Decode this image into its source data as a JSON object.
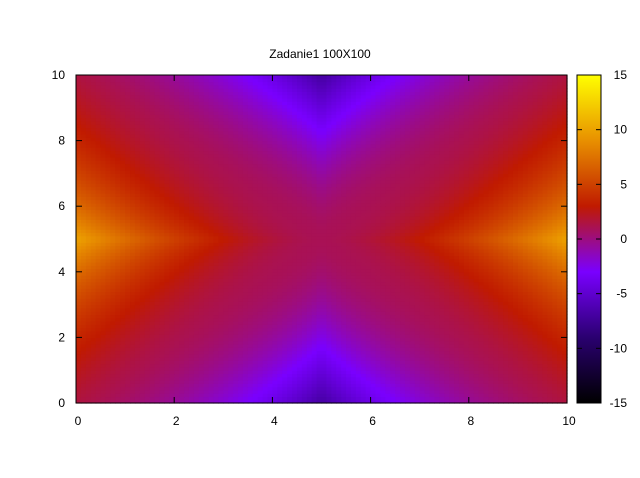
{
  "chart_data": {
    "type": "heatmap",
    "title": "Zadanie1  100X100",
    "xlabel": "",
    "ylabel": "",
    "grid_size": [
      100,
      100
    ],
    "xlim": [
      0,
      10
    ],
    "ylim": [
      0,
      10
    ],
    "xticks": [
      0,
      2,
      4,
      6,
      8,
      10
    ],
    "yticks": [
      0,
      2,
      4,
      6,
      8,
      10
    ],
    "colorbar": {
      "range": [
        -15,
        15
      ],
      "ticks": [
        -15,
        -10,
        -5,
        0,
        5,
        10,
        15
      ],
      "palette": [
        "#000000",
        "#2a0070",
        "#7a00ff",
        "#c01a00",
        "#e89000",
        "#ffff00"
      ]
    },
    "description_values": {
      "left_edge": 10,
      "right_edge": 10,
      "top_edge": -7,
      "bottom_edge": -7,
      "center": 1
    }
  }
}
